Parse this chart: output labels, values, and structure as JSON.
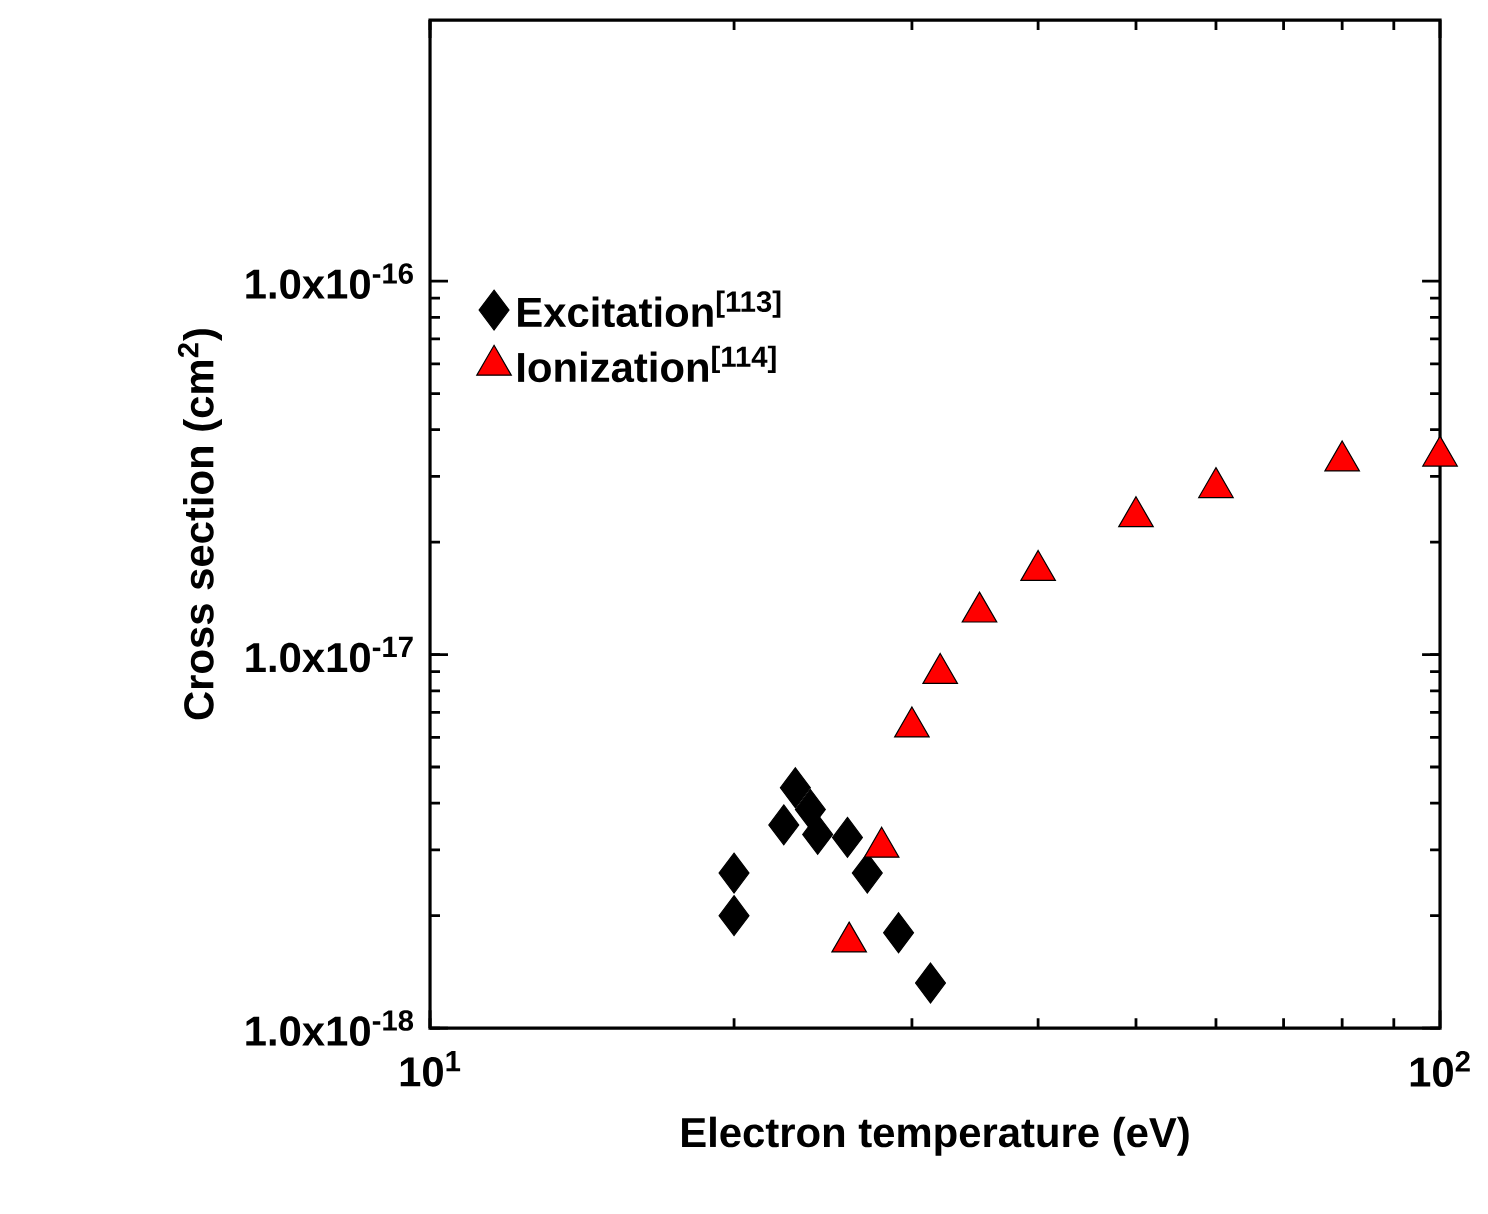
{
  "chart_data": {
    "type": "scatter",
    "xlabel": "Electron temperature (eV)",
    "ylabel": "Cross section (cm$^{2}$)",
    "log": "xy",
    "xlim": [
      10,
      100
    ],
    "ylim": [
      1e-18,
      5e-16
    ],
    "xticks": [
      {
        "value": 10,
        "label": "10$^{1}$"
      },
      {
        "value": 100,
        "label": "10$^{2}$"
      }
    ],
    "yticks": [
      {
        "value": 1e-18,
        "label": "1.0x10$^{-18}$"
      },
      {
        "value": 1e-17,
        "label": "1.0x10$^{-17}$"
      },
      {
        "value": 1e-16,
        "label": "1.0x10$^{-16}$"
      }
    ],
    "grid": false,
    "legend": "top left",
    "series": [
      {
        "name": "Excitation$^{[113]}$",
        "color": "#000000",
        "marker": "diamond",
        "x": [
          20,
          20,
          23,
          22.4,
          23.8,
          24.2,
          25.9,
          27.1,
          29.1,
          31.3
        ],
        "values": [
          2.6e-18,
          2e-18,
          4.4e-18,
          3.5e-18,
          3.85e-18,
          3.3e-18,
          3.24e-18,
          2.6e-18,
          1.8e-18,
          1.32e-18
        ]
      },
      {
        "name": "Ionization$^{[114]}$",
        "color": "#ff0000",
        "marker": "triangle",
        "x": [
          26,
          28,
          30,
          32,
          35,
          40,
          50,
          60,
          80,
          100
        ],
        "values": [
          1.7e-18,
          3.05e-18,
          6.4e-18,
          8.9e-18,
          1.3e-17,
          1.68e-17,
          2.34e-17,
          2.8e-17,
          3.3e-17,
          3.4e-17
        ]
      }
    ]
  }
}
